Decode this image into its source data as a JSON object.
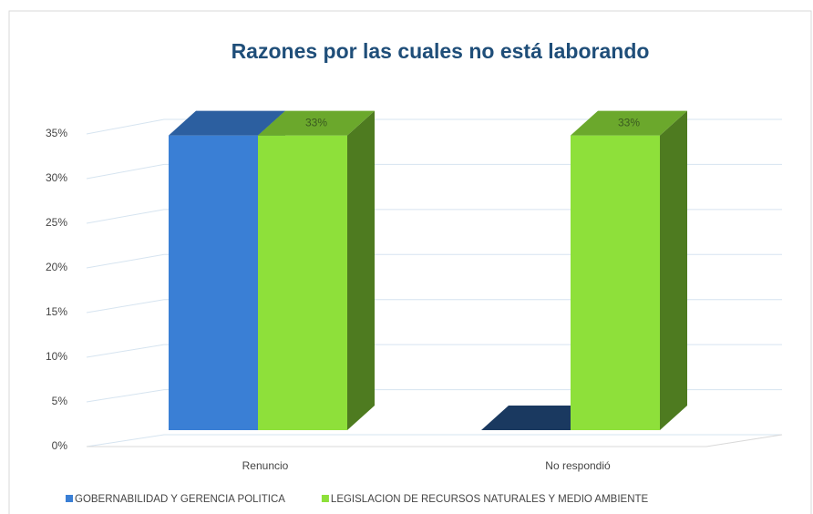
{
  "chart_data": {
    "type": "bar3d",
    "title": "Razones por las cuales no está laborando",
    "categories": [
      "Renuncio",
      "No respondió"
    ],
    "series": [
      {
        "name": "GOBERNABILIDAD Y GERENCIA POLITICA",
        "color": "#3a7fd5",
        "values": [
          33,
          0
        ]
      },
      {
        "name": "LEGISLACION DE RECURSOS NATURALES Y MEDIO AMBIENTE",
        "color": "#8ee03a",
        "values": [
          33,
          33
        ],
        "value_labels": [
          "33%",
          "33%"
        ]
      }
    ],
    "ylim": [
      0,
      35
    ],
    "yticks": [
      {
        "value": 0,
        "label": "0%"
      },
      {
        "value": 5,
        "label": "5%"
      },
      {
        "value": 10,
        "label": "10%"
      },
      {
        "value": 15,
        "label": "15%"
      },
      {
        "value": 20,
        "label": "20%"
      },
      {
        "value": 25,
        "label": "25%"
      },
      {
        "value": 30,
        "label": "30%"
      },
      {
        "value": 35,
        "label": "35%"
      }
    ],
    "grid": true,
    "legend": "bottom"
  }
}
